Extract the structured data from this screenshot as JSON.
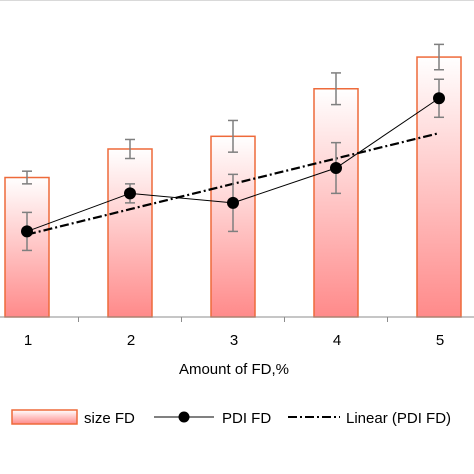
{
  "chart_data": {
    "type": "bar",
    "categories": [
      "1",
      "2",
      "3",
      "4",
      "5"
    ],
    "xlabel": "Amount of FD,%",
    "ylabel": "",
    "ylim": [
      0,
      1.0
    ],
    "grid": false,
    "legend_placement": "bottom",
    "series": [
      {
        "name": "size FD",
        "type": "bar",
        "values": [
          0.44,
          0.53,
          0.57,
          0.72,
          0.82
        ],
        "errors": [
          0.02,
          0.03,
          0.05,
          0.05,
          0.04
        ],
        "fill_top": "#ffffff",
        "fill_bottom": "#ff8a8a",
        "stroke": "#ee6a3a"
      },
      {
        "name": "PDI FD",
        "type": "line",
        "values": [
          0.27,
          0.39,
          0.36,
          0.47,
          0.69
        ],
        "errors": [
          0.06,
          0.03,
          0.09,
          0.08,
          0.06
        ],
        "color": "#000000",
        "marker": "circle"
      },
      {
        "name": "Linear (PDI FD)",
        "type": "trendline",
        "values": [
          0.26,
          0.34,
          0.42,
          0.5,
          0.58
        ],
        "color": "#000000",
        "dash": "dash-dot"
      }
    ],
    "error_bar_color": "#7f7f7f"
  }
}
